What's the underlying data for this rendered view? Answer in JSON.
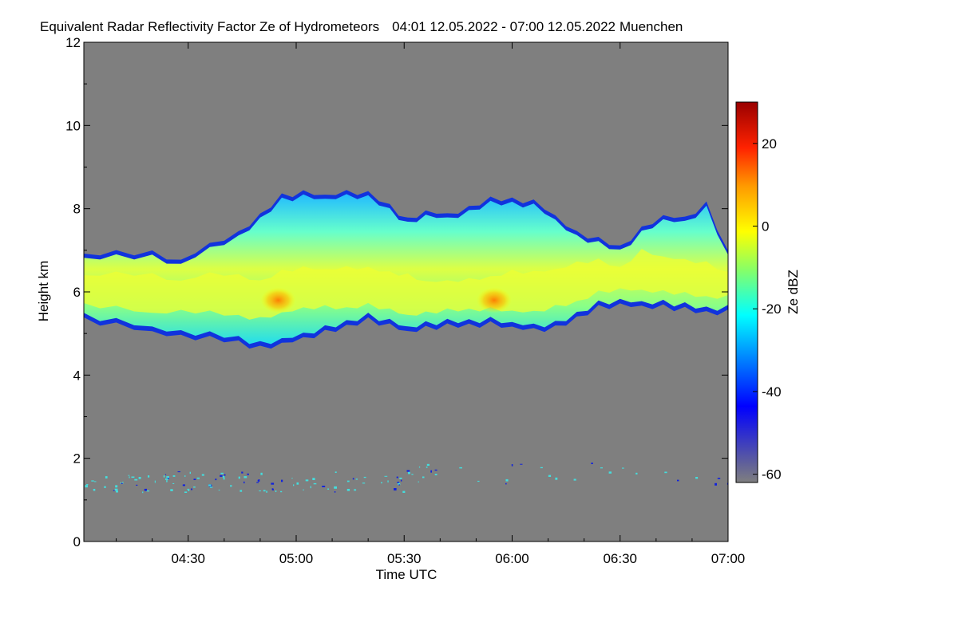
{
  "chart_data": {
    "type": "heatmap",
    "title": "Equivalent Radar Reflectivity Factor Ze of Hydrometeors",
    "period": "04:01 12.05.2022 - 07:00 12.05.2022",
    "location": "Muenchen",
    "xlabel": "Time UTC",
    "ylabel": "Height km",
    "x_range_minutes": [
      241,
      420
    ],
    "xticks": [
      {
        "minute": 270,
        "label": "04:30"
      },
      {
        "minute": 300,
        "label": "05:00"
      },
      {
        "minute": 330,
        "label": "05:30"
      },
      {
        "minute": 360,
        "label": "06:00"
      },
      {
        "minute": 390,
        "label": "06:30"
      },
      {
        "minute": 420,
        "label": "07:00"
      }
    ],
    "ylim": [
      0,
      12
    ],
    "yticks": [
      {
        "value": 0,
        "label": "0"
      },
      {
        "value": 2,
        "label": "2"
      },
      {
        "value": 4,
        "label": "4"
      },
      {
        "value": 6,
        "label": "6"
      },
      {
        "value": 8,
        "label": "8"
      },
      {
        "value": 10,
        "label": "10"
      },
      {
        "value": 12,
        "label": "12"
      }
    ],
    "colorbar": {
      "label": "Ze dBZ",
      "range": [
        -62,
        30
      ],
      "ticks": [
        {
          "value": 20,
          "label": "20"
        },
        {
          "value": 0,
          "label": "0"
        },
        {
          "value": -20,
          "label": "-20"
        },
        {
          "value": -40,
          "label": "-40"
        },
        {
          "value": -60,
          "label": "-60"
        }
      ]
    },
    "cloud_layer": {
      "minutes": [
        241,
        250,
        260,
        268,
        276,
        284,
        290,
        296,
        302,
        308,
        314,
        320,
        326,
        331,
        336,
        342,
        348,
        354,
        360,
        366,
        372,
        378,
        384,
        390,
        396,
        402,
        408,
        414,
        420
      ],
      "top_km": [
        6.9,
        7.0,
        6.9,
        6.8,
        7.2,
        7.4,
        7.9,
        8.3,
        8.4,
        8.4,
        8.4,
        8.4,
        8.1,
        7.7,
        8.0,
        7.9,
        8.0,
        8.3,
        8.2,
        8.2,
        7.9,
        7.4,
        7.3,
        7.1,
        7.5,
        7.9,
        7.8,
        8.1,
        7.0
      ],
      "base_km": [
        5.4,
        5.3,
        5.2,
        5.0,
        5.0,
        4.9,
        4.7,
        4.9,
        5.0,
        5.1,
        5.3,
        5.4,
        5.3,
        5.2,
        5.2,
        5.3,
        5.3,
        5.3,
        5.3,
        5.2,
        5.2,
        5.5,
        5.7,
        5.8,
        5.8,
        5.7,
        5.7,
        5.6,
        5.6
      ],
      "core_km": [
        6.1,
        6.1,
        6.0,
        6.0,
        6.0,
        5.9,
        5.8,
        6.0,
        6.1,
        6.1,
        6.1,
        6.1,
        6.0,
        5.9,
        5.8,
        5.8,
        5.8,
        5.9,
        6.0,
        6.0,
        6.1,
        6.2,
        6.3,
        6.4,
        6.5,
        6.4,
        6.3,
        6.2,
        6.1
      ],
      "ze_dbz": [
        -10,
        -9,
        -9,
        -8,
        -7,
        -6,
        -2,
        -3,
        -3,
        -4,
        -5,
        -6,
        -6,
        -7,
        -5,
        -4,
        -4,
        -3,
        -2,
        -2,
        -5,
        -6,
        -7,
        -6,
        -7,
        -8,
        -8,
        -7,
        -9
      ]
    },
    "reflectivity_maxima": [
      {
        "minute": 295,
        "height_km": 5.8,
        "ze_dbz": 6
      },
      {
        "minute": 355,
        "height_km": 5.8,
        "ze_dbz": 5
      }
    ],
    "low_clutter_km": [
      1.3,
      1.8
    ],
    "background_ze_dbz": -62
  }
}
